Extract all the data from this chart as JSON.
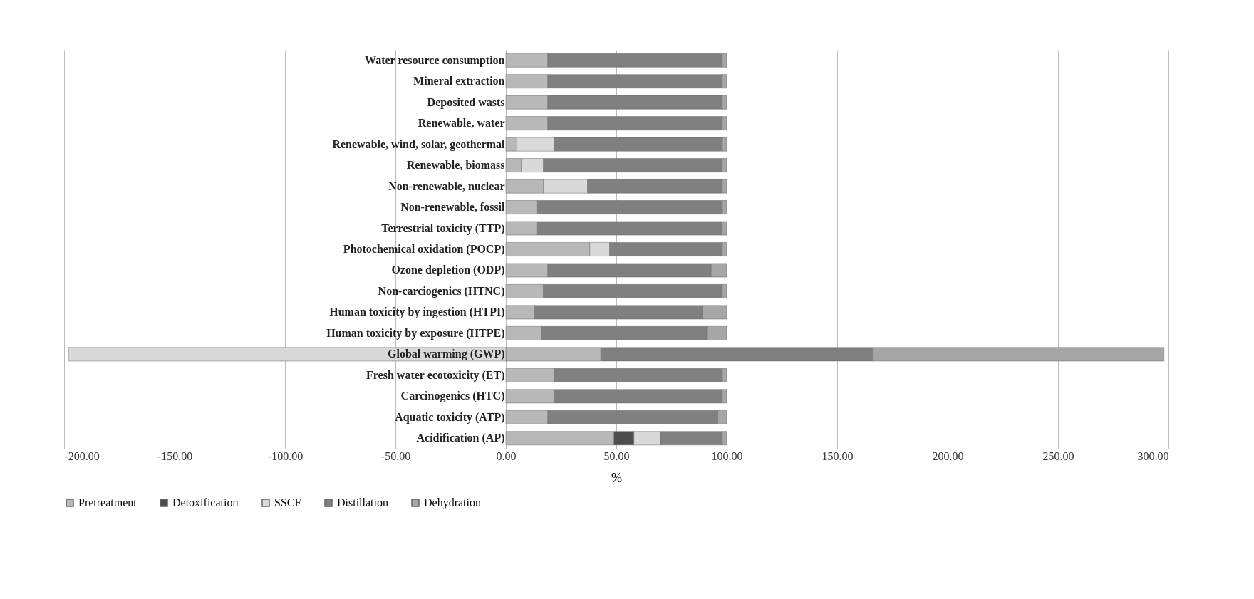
{
  "chart_data": {
    "type": "bar",
    "orientation": "horizontal",
    "stacked": true,
    "xlabel": "%",
    "categories": [
      "Water resource consumption",
      "Mineral extraction",
      "Deposited wasts",
      "Renewable, water",
      "Renewable, wind, solar, geothermal",
      "Renewable, biomass",
      "Non-renewable, nuclear",
      "Non-renewable, fossil",
      "Terrestrial toxicity (TTP)",
      "Photochemical oxidation (POCP)",
      "Ozone depletion (ODP)",
      "Non-carciogenics (HTNC)",
      "Human toxicity by ingestion (HTPI)",
      "Human toxicity by exposure (HTPE)",
      "Global warming (GWP)",
      "Fresh water ecotoxicity (ET)",
      "Carcinogenics (HTC)",
      "Aquatic toxicity (ATP)",
      "Acidification (AP)"
    ],
    "series": [
      {
        "name": "Pretreatment",
        "color": "#b8b8b8",
        "values": [
          19,
          19,
          19,
          19,
          5,
          7,
          17,
          14,
          14,
          38,
          19,
          17,
          13,
          16,
          43,
          22,
          22,
          19,
          49
        ]
      },
      {
        "name": "Detoxification",
        "color": "#4d4d4d",
        "values": [
          null,
          null,
          null,
          null,
          null,
          null,
          null,
          null,
          null,
          null,
          null,
          null,
          null,
          null,
          null,
          null,
          null,
          null,
          9
        ]
      },
      {
        "name": "SSCF",
        "color": "#d9d9d9",
        "values": [
          null,
          null,
          null,
          null,
          17,
          10,
          20,
          null,
          null,
          9,
          null,
          null,
          null,
          null,
          -198,
          null,
          null,
          null,
          12
        ]
      },
      {
        "name": "Distillation",
        "color": "#808080",
        "values": [
          79,
          79,
          79,
          79,
          76,
          81,
          61,
          84,
          84,
          51,
          74,
          81,
          76,
          75,
          123,
          76,
          76,
          77,
          28
        ]
      },
      {
        "name": "Dehydration",
        "color": "#a6a6a6",
        "values": [
          2,
          2,
          2,
          2,
          2,
          2,
          2,
          2,
          2,
          2,
          7,
          2,
          11,
          9,
          132,
          2,
          2,
          4,
          2
        ]
      }
    ],
    "xlim": [
      -200,
      300
    ],
    "xticks": [
      {
        "value": -200,
        "label": "-200.00"
      },
      {
        "value": -150,
        "label": "-150.00"
      },
      {
        "value": -100,
        "label": "-100.00"
      },
      {
        "value": -50,
        "label": "-50.00"
      },
      {
        "value": 0,
        "label": "0.00"
      },
      {
        "value": 50,
        "label": "50.00"
      },
      {
        "value": 100,
        "label": "100.00"
      },
      {
        "value": 150,
        "label": "150.00"
      },
      {
        "value": 200,
        "label": "200.00"
      },
      {
        "value": 250,
        "label": "250.00"
      },
      {
        "value": 300,
        "label": "300.00"
      }
    ],
    "grid": "x",
    "legend": "bottom"
  }
}
